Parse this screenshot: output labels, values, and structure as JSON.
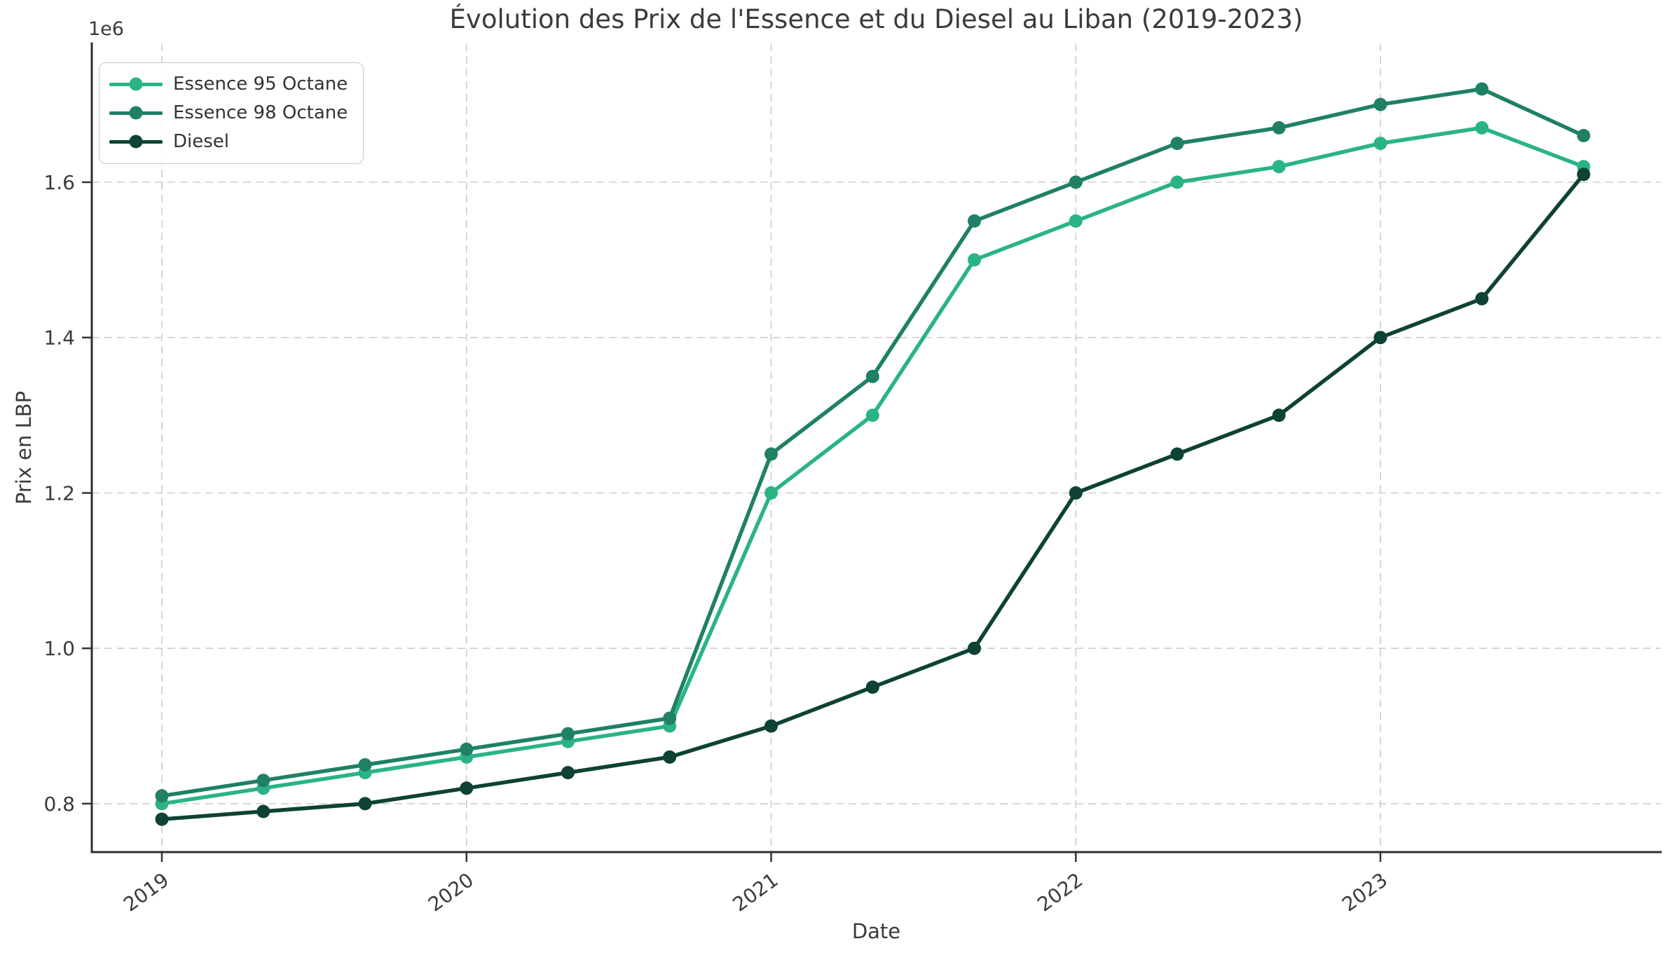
{
  "chart_data": {
    "type": "line",
    "title": "Évolution des Prix de l'Essence et du Diesel au Liban (2019-2023)",
    "xlabel": "Date",
    "ylabel": "Prix en LBP",
    "y_offset_text": "1e6",
    "grid": true,
    "legend_position": "upper left",
    "x": [
      2019.0,
      2019.333,
      2019.667,
      2020.0,
      2020.333,
      2020.667,
      2021.0,
      2021.333,
      2021.667,
      2022.0,
      2022.333,
      2022.667,
      2023.0,
      2023.333,
      2023.667
    ],
    "x_ticks": [
      2019,
      2020,
      2021,
      2022,
      2023
    ],
    "x_tick_labels": [
      "2019",
      "2020",
      "2021",
      "2022",
      "2023"
    ],
    "y_ticks": [
      800000,
      1000000,
      1200000,
      1400000,
      1600000
    ],
    "y_tick_labels": [
      "0.8",
      "1.0",
      "1.2",
      "1.4",
      "1.6"
    ],
    "xlim": [
      2018.77,
      2023.92
    ],
    "ylim": [
      737700,
      1778600
    ],
    "series": [
      {
        "name": "Essence 95 Octane",
        "color": "#2ab387",
        "values": [
          800000,
          820000,
          840000,
          860000,
          880000,
          900000,
          1200000,
          1300000,
          1500000,
          1550000,
          1600000,
          1620000,
          1650000,
          1670000,
          1620000
        ]
      },
      {
        "name": "Essence 98 Octane",
        "color": "#1f8066",
        "values": [
          810000,
          830000,
          850000,
          870000,
          890000,
          910000,
          1250000,
          1350000,
          1550000,
          1600000,
          1650000,
          1670000,
          1700000,
          1720000,
          1660000
        ]
      },
      {
        "name": "Diesel",
        "color": "#0d4234",
        "values": [
          780000,
          790000,
          800000,
          820000,
          840000,
          860000,
          900000,
          950000,
          1000000,
          1200000,
          1250000,
          1300000,
          1400000,
          1450000,
          1610000
        ]
      }
    ]
  }
}
